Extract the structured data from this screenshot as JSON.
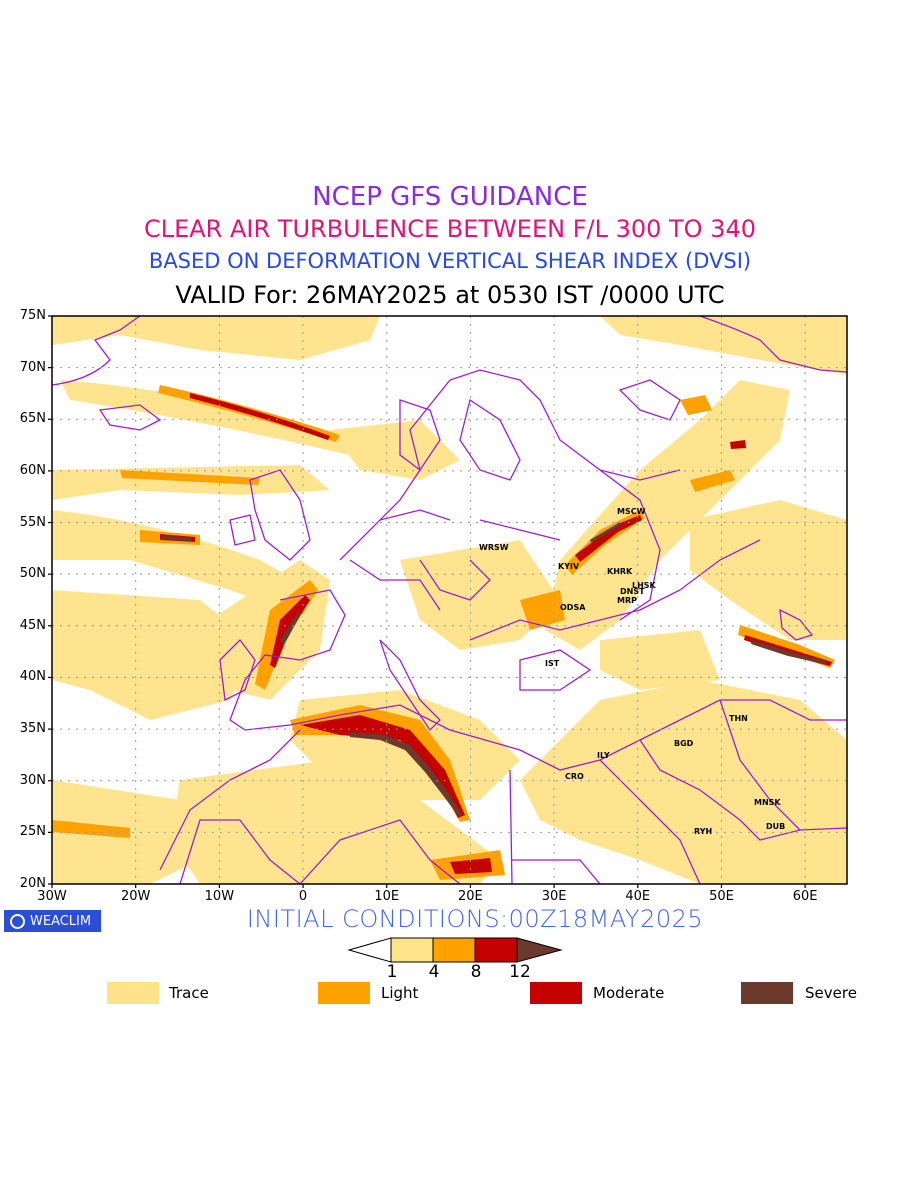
{
  "titles": {
    "line1": "NCEP GFS GUIDANCE",
    "line2": "CLEAR AIR TURBULENCE BETWEEN F/L 300 TO 340",
    "line3": "BASED ON DEFORMATION VERTICAL SHEAR INDEX (DVSI)",
    "line4": "VALID For: 26MAY2025 at 0530 IST /0000 UTC"
  },
  "colors": {
    "line1": "#8a2be2",
    "line2": "#e0137a",
    "line3": "#2848e8",
    "trace": "#ffe38a",
    "light": "#ffa200",
    "moderate": "#c40000",
    "severe": "#6b3a2c",
    "borders": "#9b1fd0",
    "initial": "#4166e6",
    "badge": "#2a4ed8"
  },
  "lat_labels": [
    "75N",
    "70N",
    "65N",
    "60N",
    "55N",
    "50N",
    "45N",
    "40N",
    "35N",
    "30N",
    "25N",
    "20N"
  ],
  "lon_labels": [
    "30W",
    "20W",
    "10W",
    "0",
    "10E",
    "20E",
    "30E",
    "40E",
    "50E",
    "60E"
  ],
  "cities": [
    {
      "name": "MSCW"
    },
    {
      "name": "WRSW"
    },
    {
      "name": "KYIV"
    },
    {
      "name": "KHRK"
    },
    {
      "name": "LHSK"
    },
    {
      "name": "DNST"
    },
    {
      "name": "MRP"
    },
    {
      "name": "ODSA"
    },
    {
      "name": "IST"
    },
    {
      "name": "THN"
    },
    {
      "name": "BGD"
    },
    {
      "name": "ILY"
    },
    {
      "name": "CRO"
    },
    {
      "name": "MNSK"
    },
    {
      "name": "RYH"
    },
    {
      "name": "DUB"
    }
  ],
  "badge": {
    "label": "WEACLIM",
    "icon": "globe-icon"
  },
  "initial_conditions": "INITIAL CONDITIONS:00Z18MAY2025",
  "colorbar": {
    "ticks": [
      "1",
      "4",
      "8",
      "12"
    ]
  },
  "legend": [
    {
      "label": "Trace"
    },
    {
      "label": "Light"
    },
    {
      "label": "Moderate"
    },
    {
      "label": "Severe"
    }
  ]
}
